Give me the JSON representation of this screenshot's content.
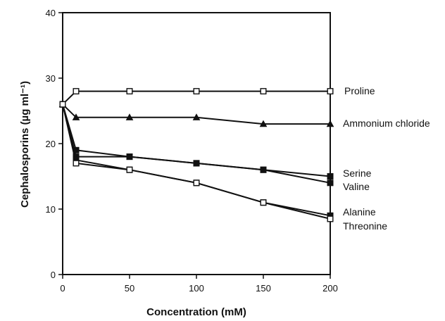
{
  "chart_data": {
    "type": "line",
    "title": "",
    "xlabel": "Concentration (mM)",
    "ylabel": "Cephalosporins (µg ml⁻¹)",
    "xlim": [
      0,
      200
    ],
    "ylim": [
      0,
      40
    ],
    "xticks": [
      0,
      50,
      100,
      150,
      200
    ],
    "yticks": [
      0,
      10,
      20,
      30,
      40
    ],
    "grid": false,
    "legend": "inline-right",
    "series": [
      {
        "name": "Proline",
        "marker": "open-square",
        "x": [
          0,
          10,
          50,
          100,
          150,
          200
        ],
        "y": [
          26,
          28,
          28,
          28,
          28,
          28
        ]
      },
      {
        "name": "Ammonium chloride",
        "marker": "filled-triangle",
        "x": [
          0,
          10,
          50,
          100,
          150,
          200
        ],
        "y": [
          26,
          24,
          24,
          24,
          23,
          23
        ]
      },
      {
        "name": "Serine",
        "marker": "filled-square",
        "x": [
          0,
          10,
          50,
          100,
          150,
          200
        ],
        "y": [
          26,
          18,
          18,
          17,
          16,
          15
        ]
      },
      {
        "name": "Valine",
        "marker": "filled-square",
        "x": [
          0,
          10,
          50,
          100,
          150,
          200
        ],
        "y": [
          26,
          19,
          18,
          17,
          16,
          14
        ]
      },
      {
        "name": "Alanine",
        "marker": "filled-square",
        "x": [
          0,
          10,
          50,
          100,
          150,
          200
        ],
        "y": [
          26,
          17.5,
          16,
          14,
          11,
          9
        ]
      },
      {
        "name": "Threonine",
        "marker": "open-square",
        "x": [
          0,
          10,
          50,
          100,
          150,
          200
        ],
        "y": [
          26,
          17,
          16,
          14,
          11,
          8.5
        ]
      }
    ]
  }
}
